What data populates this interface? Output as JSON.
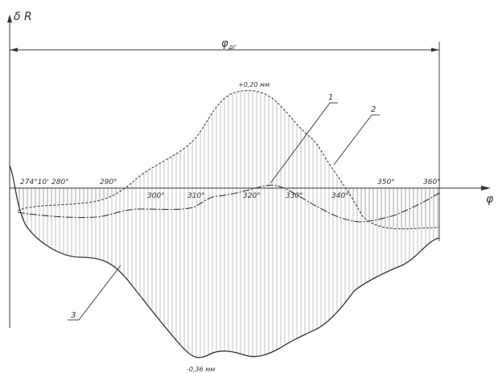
{
  "axes": {
    "y_label": "δ R",
    "x_label": "φ",
    "span_label": "φ",
    "span_subscript": "дг"
  },
  "annotations": {
    "max_label": "+0,20 мм",
    "min_label": "-0,36 мм"
  },
  "callouts": [
    "1",
    "2",
    "3"
  ],
  "ticks": [
    "274°10'",
    "280°",
    "290°",
    "300°",
    "310°",
    "320°",
    "330°",
    "340°",
    "350°",
    "360°"
  ],
  "colors": {
    "line": "#333333",
    "hatch": "#888888"
  }
}
